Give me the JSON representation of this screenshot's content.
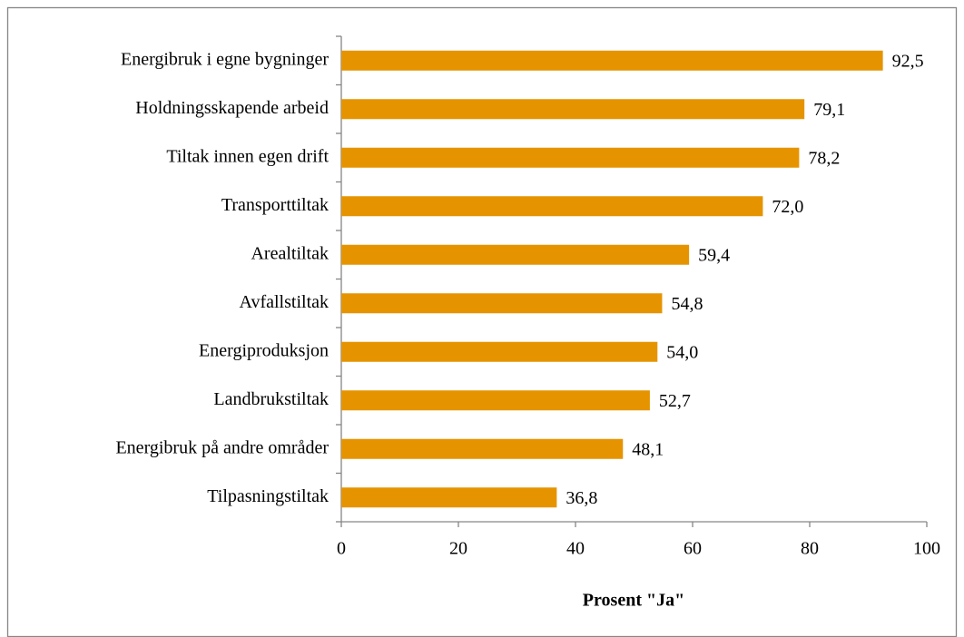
{
  "chart_data": {
    "type": "bar",
    "orientation": "horizontal",
    "categories": [
      "Energibruk i egne bygninger",
      "Holdningsskapende arbeid",
      "Tiltak innen egen drift",
      "Transporttiltak",
      "Arealtiltak",
      "Avfallstiltak",
      "Energiproduksjon",
      "Landbrukstiltak",
      "Energibruk på andre områder",
      "Tilpasningstiltak"
    ],
    "values": [
      92.5,
      79.1,
      78.2,
      72.0,
      59.4,
      54.8,
      54.0,
      52.7,
      48.1,
      36.8
    ],
    "value_labels": [
      "92,5",
      "79,1",
      "78,2",
      "72,0",
      "59,4",
      "54,8",
      "54,0",
      "52,7",
      "48,1",
      "36,8"
    ],
    "color": "#e59400",
    "xlabel": "Prosent \"Ja\"",
    "xlim": [
      0,
      100
    ],
    "xticks": [
      0,
      20,
      40,
      60,
      80,
      100
    ]
  }
}
